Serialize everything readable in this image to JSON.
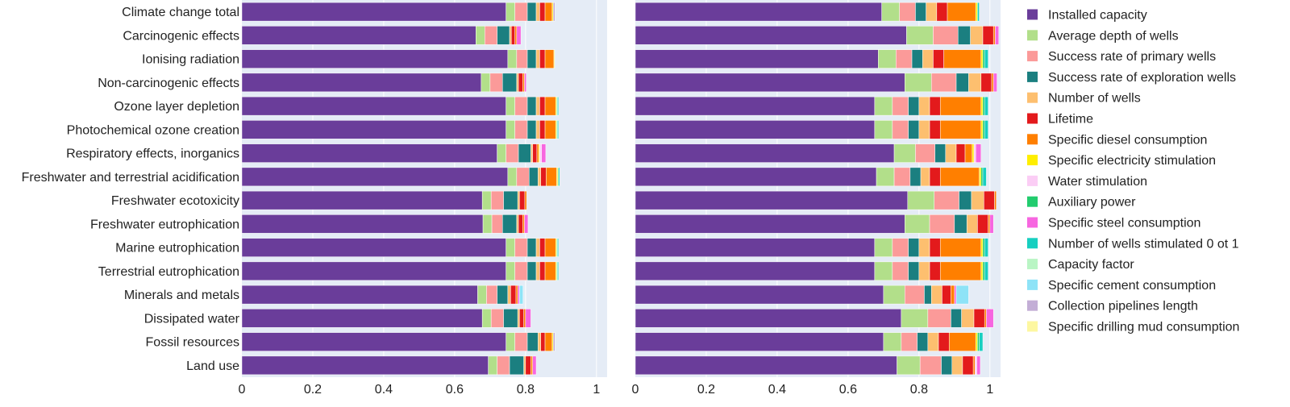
{
  "chart_data": {
    "type": "bar",
    "orientation": "horizontal",
    "stacked": true,
    "legend_placement": "right",
    "grid": true,
    "xlim": [
      0,
      1.03
    ],
    "xticks": [
      "0",
      "0.2",
      "0.4",
      "0.6",
      "0.8",
      "1"
    ],
    "categories": [
      "Climate change total",
      "Carcinogenic effects",
      "Ionising radiation",
      "Non-carcinogenic effects",
      "Ozone layer depletion",
      "Photochemical ozone creation",
      "Respiratory effects, inorganics",
      "Freshwater and terrestrial acidification",
      "Freshwater ecotoxicity",
      "Freshwater eutrophication",
      "Marine eutrophication",
      "Terrestrial eutrophication",
      "Minerals and metals",
      "Dissipated water",
      "Fossil resources",
      "Land use"
    ],
    "series_names": [
      "Installed capacity",
      "Average depth of wells",
      "Success rate of primary wells",
      "Success rate of exploration wells",
      "Number of wells",
      "Lifetime",
      "Specific diesel consumption",
      "Specific electricity stimulation",
      "Water stimulation",
      "Auxiliary power",
      "Specific steel consumption",
      "Number of wells stimulated 0 ot 1",
      "Capacity factor",
      "Specific cement consumption",
      "Collection pipelines length",
      "Specific drilling mud consumption"
    ],
    "colors": [
      "#6a3d9a",
      "#b2df8a",
      "#fb9a99",
      "#1b7f80",
      "#fdbf6f",
      "#e31a1c",
      "#ff7f00",
      "#ffee00",
      "#fbcdf5",
      "#22cc6e",
      "#f766e0",
      "#17cfc0",
      "#b9f5c4",
      "#8ee3f7",
      "#c3aed6",
      "#fdf7a0"
    ],
    "panels": [
      {
        "name": "left",
        "values": [
          [
            0.745,
            0.025,
            0.035,
            0.025,
            0.01,
            0.015,
            0.02,
            0.003,
            0.0,
            0.0,
            0.0,
            0.0,
            0.0,
            0.0,
            0.005,
            0.0
          ],
          [
            0.66,
            0.025,
            0.035,
            0.035,
            0.005,
            0.01,
            0.005,
            0.0,
            0.0,
            0.0,
            0.012,
            0.0,
            0.0,
            0.0,
            0.0,
            0.0
          ],
          [
            0.75,
            0.025,
            0.03,
            0.025,
            0.01,
            0.015,
            0.025,
            0.002,
            0.0,
            0.0,
            0.0,
            0.0,
            0.0,
            0.0,
            0.0,
            0.0
          ],
          [
            0.675,
            0.025,
            0.035,
            0.04,
            0.005,
            0.012,
            0.005,
            0.0,
            0.0,
            0.0,
            0.005,
            0.0,
            0.0,
            0.0,
            0.0,
            0.0
          ],
          [
            0.745,
            0.025,
            0.035,
            0.025,
            0.01,
            0.015,
            0.03,
            0.003,
            0.0,
            0.002,
            0.0,
            0.003,
            0.0,
            0.0,
            0.0,
            0.0
          ],
          [
            0.745,
            0.025,
            0.035,
            0.025,
            0.01,
            0.015,
            0.03,
            0.003,
            0.0,
            0.002,
            0.0,
            0.003,
            0.0,
            0.0,
            0.0,
            0.0
          ],
          [
            0.72,
            0.025,
            0.035,
            0.035,
            0.005,
            0.012,
            0.005,
            0.003,
            0.005,
            0.0,
            0.012,
            0.0,
            0.0,
            0.0,
            0.0,
            0.0
          ],
          [
            0.75,
            0.025,
            0.035,
            0.025,
            0.008,
            0.015,
            0.03,
            0.003,
            0.0,
            0.002,
            0.0,
            0.003,
            0.0,
            0.0,
            0.0,
            0.0
          ],
          [
            0.678,
            0.025,
            0.035,
            0.04,
            0.005,
            0.015,
            0.005,
            0.0,
            0.0,
            0.0,
            0.0,
            0.0,
            0.0,
            0.0,
            0.0,
            0.0
          ],
          [
            0.68,
            0.025,
            0.03,
            0.04,
            0.005,
            0.012,
            0.005,
            0.0,
            0.0,
            0.0,
            0.01,
            0.0,
            0.0,
            0.0,
            0.0,
            0.0
          ],
          [
            0.745,
            0.025,
            0.035,
            0.025,
            0.01,
            0.015,
            0.03,
            0.003,
            0.0,
            0.002,
            0.0,
            0.003,
            0.0,
            0.0,
            0.0,
            0.0
          ],
          [
            0.745,
            0.025,
            0.035,
            0.025,
            0.01,
            0.015,
            0.03,
            0.003,
            0.0,
            0.002,
            0.0,
            0.003,
            0.0,
            0.0,
            0.0,
            0.0
          ],
          [
            0.665,
            0.025,
            0.03,
            0.03,
            0.008,
            0.015,
            0.005,
            0.0,
            0.0,
            0.0,
            0.005,
            0.0,
            0.0,
            0.01,
            0.0,
            0.0
          ],
          [
            0.678,
            0.025,
            0.035,
            0.04,
            0.005,
            0.012,
            0.005,
            0.0,
            0.0,
            0.0,
            0.015,
            0.0,
            0.0,
            0.0,
            0.0,
            0.0
          ],
          [
            0.745,
            0.025,
            0.035,
            0.03,
            0.008,
            0.012,
            0.02,
            0.003,
            0.0,
            0.0,
            0.0,
            0.0,
            0.0,
            0.0,
            0.005,
            0.0
          ],
          [
            0.695,
            0.025,
            0.035,
            0.04,
            0.005,
            0.015,
            0.005,
            0.0,
            0.0,
            0.0,
            0.01,
            0.0,
            0.0,
            0.0,
            0.0,
            0.0
          ]
        ]
      },
      {
        "name": "right",
        "values": [
          [
            0.695,
            0.05,
            0.045,
            0.03,
            0.03,
            0.03,
            0.08,
            0.005,
            0.0,
            0.0,
            0.0,
            0.005,
            0.0,
            0.0,
            0.0,
            0.0
          ],
          [
            0.765,
            0.075,
            0.07,
            0.035,
            0.035,
            0.03,
            0.005,
            0.0,
            0.0,
            0.0,
            0.01,
            0.0,
            0.0,
            0.0,
            0.0,
            0.0
          ],
          [
            0.685,
            0.05,
            0.045,
            0.03,
            0.03,
            0.03,
            0.105,
            0.005,
            0.0,
            0.005,
            0.0,
            0.01,
            0.0,
            0.0,
            0.0,
            0.0
          ],
          [
            0.76,
            0.075,
            0.07,
            0.035,
            0.035,
            0.03,
            0.005,
            0.0,
            0.0,
            0.0,
            0.01,
            0.0,
            0.0,
            0.0,
            0.0,
            0.0
          ],
          [
            0.675,
            0.05,
            0.045,
            0.03,
            0.03,
            0.03,
            0.115,
            0.005,
            0.0,
            0.005,
            0.0,
            0.01,
            0.0,
            0.0,
            0.0,
            0.0
          ],
          [
            0.675,
            0.05,
            0.045,
            0.03,
            0.03,
            0.03,
            0.115,
            0.005,
            0.0,
            0.005,
            0.0,
            0.01,
            0.0,
            0.0,
            0.0,
            0.0
          ],
          [
            0.73,
            0.06,
            0.055,
            0.03,
            0.03,
            0.025,
            0.02,
            0.005,
            0.005,
            0.0,
            0.015,
            0.0,
            0.0,
            0.0,
            0.0,
            0.0
          ],
          [
            0.68,
            0.05,
            0.045,
            0.03,
            0.025,
            0.03,
            0.11,
            0.005,
            0.0,
            0.005,
            0.0,
            0.01,
            0.0,
            0.0,
            0.0,
            0.0
          ],
          [
            0.768,
            0.075,
            0.07,
            0.035,
            0.035,
            0.03,
            0.005,
            0.0,
            0.0,
            0.0,
            0.0,
            0.0,
            0.0,
            0.0,
            0.0,
            0.0
          ],
          [
            0.76,
            0.07,
            0.07,
            0.035,
            0.03,
            0.03,
            0.005,
            0.0,
            0.0,
            0.0,
            0.01,
            0.0,
            0.0,
            0.0,
            0.0,
            0.0
          ],
          [
            0.675,
            0.05,
            0.045,
            0.03,
            0.03,
            0.03,
            0.115,
            0.005,
            0.0,
            0.005,
            0.0,
            0.01,
            0.0,
            0.0,
            0.0,
            0.0
          ],
          [
            0.675,
            0.05,
            0.045,
            0.03,
            0.03,
            0.03,
            0.115,
            0.005,
            0.0,
            0.005,
            0.0,
            0.01,
            0.0,
            0.0,
            0.0,
            0.0
          ],
          [
            0.7,
            0.06,
            0.055,
            0.02,
            0.03,
            0.025,
            0.01,
            0.0,
            0.0,
            0.0,
            0.005,
            0.0,
            0.0,
            0.035,
            0.0,
            0.0
          ],
          [
            0.75,
            0.075,
            0.065,
            0.03,
            0.035,
            0.03,
            0.005,
            0.0,
            0.0,
            0.0,
            0.02,
            0.0,
            0.0,
            0.0,
            0.0,
            0.0
          ],
          [
            0.7,
            0.05,
            0.045,
            0.03,
            0.03,
            0.03,
            0.075,
            0.005,
            0.0,
            0.005,
            0.0,
            0.01,
            0.0,
            0.0,
            0.0,
            0.0
          ],
          [
            0.738,
            0.065,
            0.06,
            0.03,
            0.03,
            0.03,
            0.005,
            0.0,
            0.005,
            0.0,
            0.01,
            0.0,
            0.0,
            0.0,
            0.0,
            0.0
          ]
        ]
      }
    ]
  }
}
